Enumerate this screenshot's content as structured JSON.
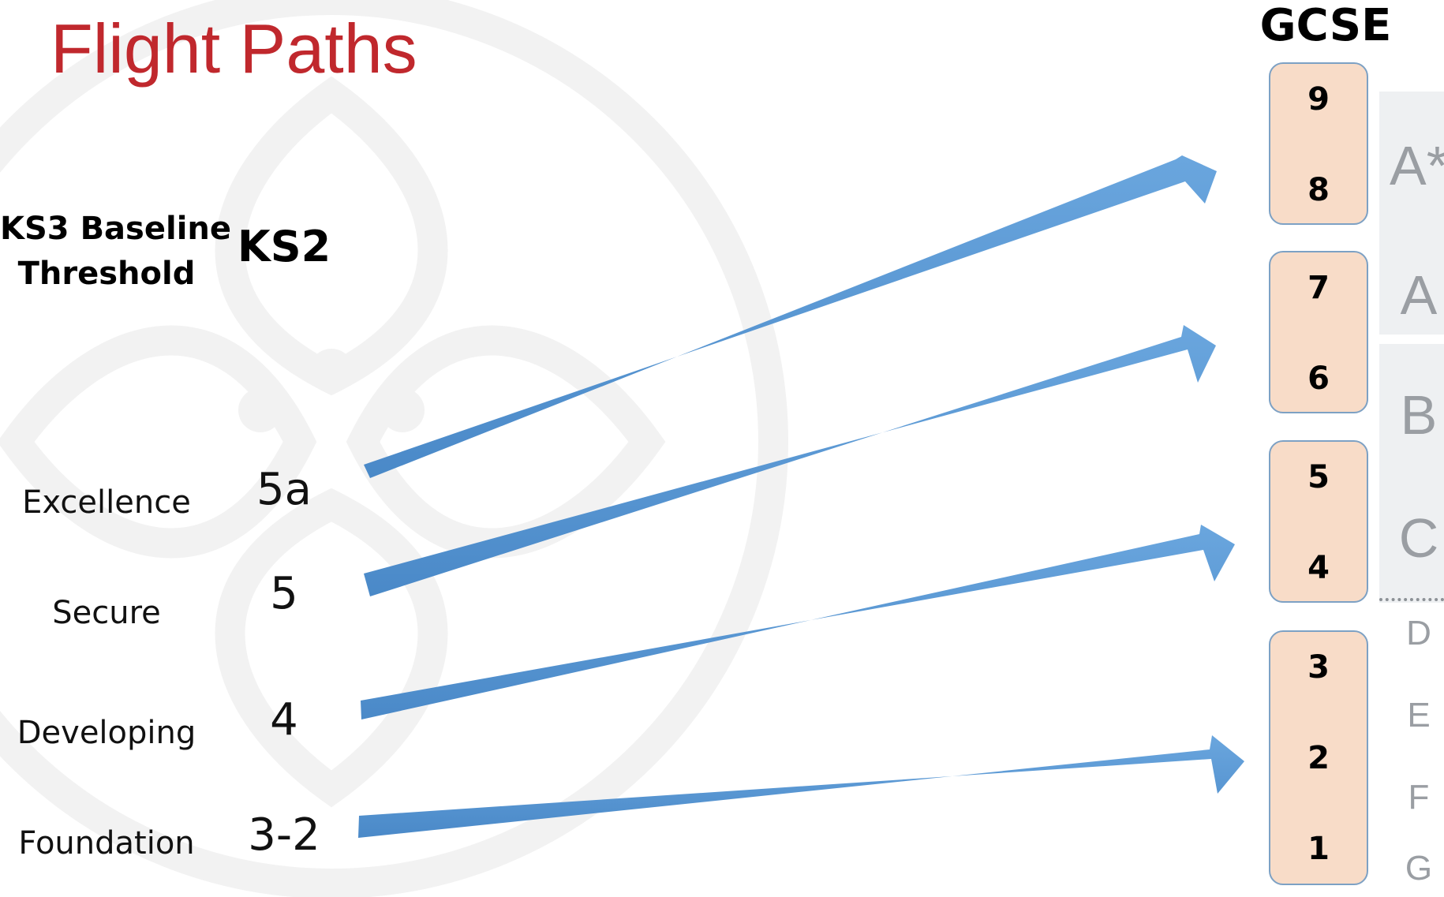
{
  "title": "Flight Paths",
  "headers": {
    "baseline_line1": "KS3 Baseline",
    "baseline_line2": "Threshold",
    "ks2": "KS2",
    "gcse": "GCSE"
  },
  "rows": [
    {
      "level": "Excellence",
      "ks2": "5a"
    },
    {
      "level": "Secure",
      "ks2": "5"
    },
    {
      "level": "Developing",
      "ks2": "4"
    },
    {
      "level": "Foundation",
      "ks2": "3-2"
    }
  ],
  "gcse_boxes": [
    {
      "grades": [
        "9",
        "8"
      ]
    },
    {
      "grades": [
        "7",
        "6"
      ]
    },
    {
      "grades": [
        "5",
        "4"
      ]
    },
    {
      "grades": [
        "3",
        "2",
        "1"
      ]
    }
  ],
  "old_grades": [
    "A*",
    "A",
    "B",
    "C",
    "D",
    "E",
    "F",
    "G"
  ],
  "colors": {
    "title": "#c0282d",
    "arrow": "#5b9bd5",
    "box_fill": "#f8dcc8",
    "box_border": "#7da1c4"
  }
}
